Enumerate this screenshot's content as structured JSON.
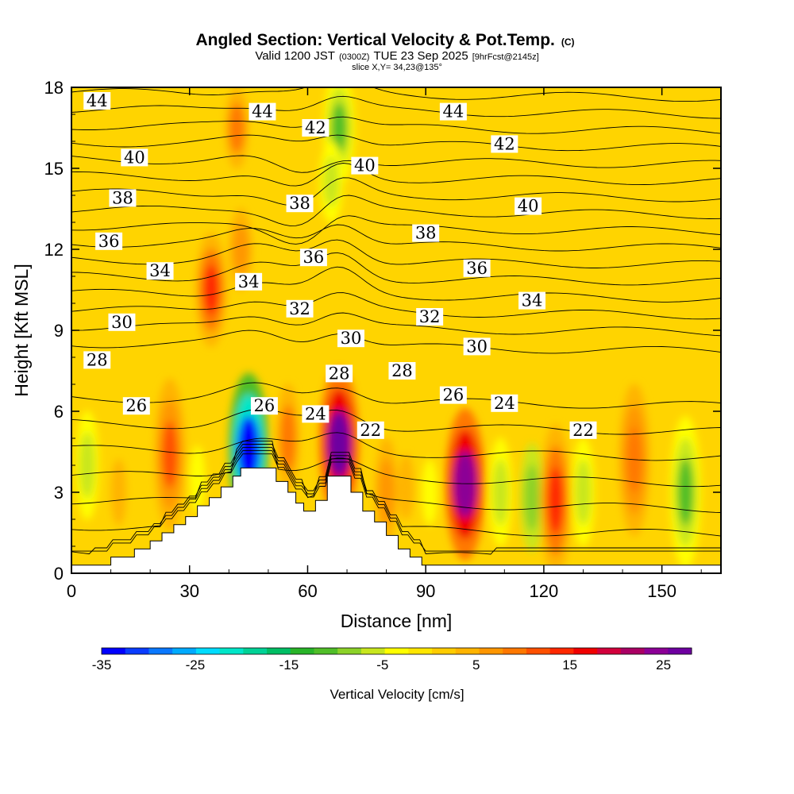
{
  "title": {
    "main": "Angled Section: Vertical Velocity & Pot.Temp.",
    "main_suffix": "(C)",
    "line2_a": "Valid 1200 JST",
    "line2_b": "(0300Z)",
    "line2_c": "TUE 23 Sep 2025",
    "line2_d": "[9hrFcst@2145z]",
    "line3": "slice X,Y= 34,23@135°"
  },
  "chart_data": {
    "type": "heatmap",
    "xlabel": "Distance [nm]",
    "ylabel": "Height [Kft MSL]",
    "xlim": [
      0,
      165
    ],
    "ylim": [
      0,
      18
    ],
    "x_ticks": [
      "0",
      "30",
      "60",
      "90",
      "120",
      "150"
    ],
    "x_tick_values": [
      0,
      30,
      60,
      90,
      120,
      150
    ],
    "y_ticks": [
      "0",
      "3",
      "6",
      "9",
      "12",
      "15",
      "18"
    ],
    "y_tick_values": [
      0,
      3,
      6,
      9,
      12,
      15,
      18
    ],
    "colorbar": {
      "title": "Vertical Velocity [cm/s]",
      "tick_labels": [
        "-35",
        "-25",
        "-15",
        "-5",
        "5",
        "15",
        "25"
      ],
      "tick_values": [
        -35,
        -25,
        -15,
        -5,
        5,
        15,
        25
      ],
      "range": [
        -35,
        28
      ],
      "colors": [
        "#0000ff",
        "#0a3cff",
        "#0a78ff",
        "#00aaff",
        "#00dcff",
        "#00e6c8",
        "#00d296",
        "#00be64",
        "#28b428",
        "#50be28",
        "#8cd228",
        "#c8e61e",
        "#ffff00",
        "#ffe600",
        "#ffcc00",
        "#ffb400",
        "#ff9600",
        "#ff7800",
        "#ff5000",
        "#ff2800",
        "#f00000",
        "#d2003c",
        "#aa0064",
        "#8c0096",
        "#6e00a0"
      ]
    },
    "theta_contour_labels": [
      {
        "text": "44",
        "x": 6.5,
        "y": 17.5
      },
      {
        "text": "44",
        "x": 48.5,
        "y": 17.1
      },
      {
        "text": "42",
        "x": 62,
        "y": 16.5
      },
      {
        "text": "44",
        "x": 97,
        "y": 17.1
      },
      {
        "text": "42",
        "x": 110,
        "y": 15.9
      },
      {
        "text": "40",
        "x": 16,
        "y": 15.4
      },
      {
        "text": "40",
        "x": 74.5,
        "y": 15.1
      },
      {
        "text": "38",
        "x": 13,
        "y": 13.9
      },
      {
        "text": "38",
        "x": 58,
        "y": 13.7
      },
      {
        "text": "40",
        "x": 116,
        "y": 13.6
      },
      {
        "text": "36",
        "x": 9.5,
        "y": 12.3
      },
      {
        "text": "38",
        "x": 90,
        "y": 12.6
      },
      {
        "text": "36",
        "x": 61.5,
        "y": 11.7
      },
      {
        "text": "36",
        "x": 103,
        "y": 11.3
      },
      {
        "text": "34",
        "x": 22.5,
        "y": 11.2
      },
      {
        "text": "34",
        "x": 45,
        "y": 10.8
      },
      {
        "text": "34",
        "x": 117,
        "y": 10.1
      },
      {
        "text": "32",
        "x": 58,
        "y": 9.8
      },
      {
        "text": "32",
        "x": 91,
        "y": 9.5
      },
      {
        "text": "30",
        "x": 12.8,
        "y": 9.3
      },
      {
        "text": "30",
        "x": 71,
        "y": 8.7
      },
      {
        "text": "30",
        "x": 103,
        "y": 8.4
      },
      {
        "text": "28",
        "x": 6.5,
        "y": 7.9
      },
      {
        "text": "28",
        "x": 68,
        "y": 7.4
      },
      {
        "text": "28",
        "x": 84,
        "y": 7.5
      },
      {
        "text": "26",
        "x": 16.5,
        "y": 6.2
      },
      {
        "text": "26",
        "x": 49,
        "y": 6.2
      },
      {
        "text": "24",
        "x": 62,
        "y": 5.9
      },
      {
        "text": "26",
        "x": 97,
        "y": 6.6
      },
      {
        "text": "24",
        "x": 110,
        "y": 6.3
      },
      {
        "text": "22",
        "x": 76,
        "y": 5.3
      },
      {
        "text": "22",
        "x": 130,
        "y": 5.3
      }
    ],
    "vertical_velocity_centers": [
      {
        "x": 4,
        "y": 4.0,
        "w": -7
      },
      {
        "x": 12,
        "y": 3.0,
        "w": 4
      },
      {
        "x": 25,
        "y": 4.4,
        "w": 12
      },
      {
        "x": 32,
        "y": 3.5,
        "w": -4
      },
      {
        "x": 35.5,
        "y": 10.5,
        "w": 13
      },
      {
        "x": 43,
        "y": 12.0,
        "w": 7
      },
      {
        "x": 42,
        "y": 16.5,
        "w": 8
      },
      {
        "x": 45,
        "y": 4.6,
        "w": -33
      },
      {
        "x": 55,
        "y": 5.0,
        "w": 8
      },
      {
        "x": 68,
        "y": 4.8,
        "w": 26
      },
      {
        "x": 68,
        "y": 16.5,
        "w": -10
      },
      {
        "x": 66,
        "y": 14.5,
        "w": -5
      },
      {
        "x": 80,
        "y": 3.0,
        "w": 6
      },
      {
        "x": 85,
        "y": 3.2,
        "w": 4
      },
      {
        "x": 91,
        "y": 3.0,
        "w": -4
      },
      {
        "x": 100,
        "y": 3.3,
        "w": 25
      },
      {
        "x": 109,
        "y": 3.0,
        "w": -6
      },
      {
        "x": 117,
        "y": 2.8,
        "w": -8
      },
      {
        "x": 123,
        "y": 2.7,
        "w": 15
      },
      {
        "x": 130,
        "y": 3.0,
        "w": -5
      },
      {
        "x": 143,
        "y": 4.2,
        "w": 10
      },
      {
        "x": 156,
        "y": 3.0,
        "w": -10
      }
    ],
    "terrain": [
      {
        "x": 0,
        "h": 0.3
      },
      {
        "x": 10,
        "h": 0.3
      },
      {
        "x": 10,
        "h": 0.6
      },
      {
        "x": 16,
        "h": 0.6
      },
      {
        "x": 16,
        "h": 0.9
      },
      {
        "x": 20,
        "h": 0.9
      },
      {
        "x": 20,
        "h": 1.2
      },
      {
        "x": 23,
        "h": 1.2
      },
      {
        "x": 23,
        "h": 1.5
      },
      {
        "x": 26,
        "h": 1.5
      },
      {
        "x": 26,
        "h": 1.8
      },
      {
        "x": 29,
        "h": 1.8
      },
      {
        "x": 29,
        "h": 2.1
      },
      {
        "x": 32,
        "h": 2.1
      },
      {
        "x": 32,
        "h": 2.5
      },
      {
        "x": 35,
        "h": 2.5
      },
      {
        "x": 35,
        "h": 2.8
      },
      {
        "x": 38,
        "h": 2.8
      },
      {
        "x": 38,
        "h": 3.2
      },
      {
        "x": 41,
        "h": 3.2
      },
      {
        "x": 41,
        "h": 3.6
      },
      {
        "x": 43,
        "h": 3.6
      },
      {
        "x": 43,
        "h": 3.9
      },
      {
        "x": 52,
        "h": 3.9
      },
      {
        "x": 52,
        "h": 3.4
      },
      {
        "x": 55,
        "h": 3.4
      },
      {
        "x": 55,
        "h": 3.0
      },
      {
        "x": 57,
        "h": 3.0
      },
      {
        "x": 57,
        "h": 2.6
      },
      {
        "x": 59,
        "h": 2.6
      },
      {
        "x": 59,
        "h": 2.3
      },
      {
        "x": 62,
        "h": 2.3
      },
      {
        "x": 62,
        "h": 2.7
      },
      {
        "x": 65,
        "h": 2.7
      },
      {
        "x": 65,
        "h": 3.6
      },
      {
        "x": 71,
        "h": 3.6
      },
      {
        "x": 71,
        "h": 3.0
      },
      {
        "x": 74,
        "h": 3.0
      },
      {
        "x": 74,
        "h": 2.3
      },
      {
        "x": 77,
        "h": 2.3
      },
      {
        "x": 77,
        "h": 1.9
      },
      {
        "x": 80,
        "h": 1.9
      },
      {
        "x": 80,
        "h": 1.4
      },
      {
        "x": 83,
        "h": 1.4
      },
      {
        "x": 83,
        "h": 0.9
      },
      {
        "x": 86,
        "h": 0.9
      },
      {
        "x": 86,
        "h": 0.6
      },
      {
        "x": 89,
        "h": 0.6
      },
      {
        "x": 89,
        "h": 0.3
      },
      {
        "x": 165,
        "h": 0.3
      }
    ]
  }
}
